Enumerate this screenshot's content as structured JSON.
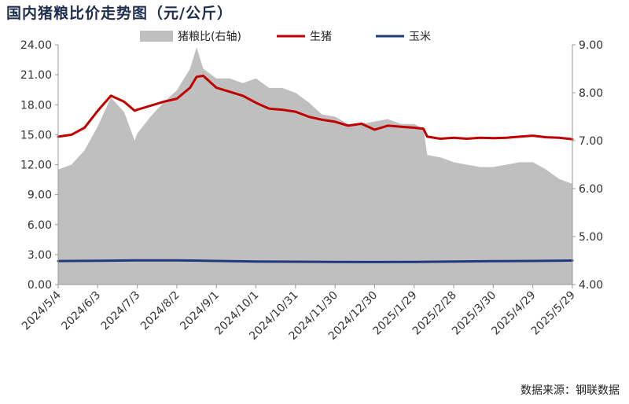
{
  "chart_data": {
    "type": "line",
    "title": "国内猪粮比价走势图（元/公斤）",
    "source": "数据来源：钢联数据",
    "x_ticks": [
      "2024/5/4",
      "2024/6/3",
      "2024/7/3",
      "2024/8/2",
      "2024/9/1",
      "2024/10/1",
      "2024/10/31",
      "2024/11/30",
      "2024/12/30",
      "2025/1/29",
      "2025/2/28",
      "2025/3/30",
      "2025/4/29",
      "2025/5/29"
    ],
    "left_axis": {
      "ylim": [
        0,
        24
      ],
      "ticks": [
        "0.00",
        "3.00",
        "6.00",
        "9.00",
        "12.00",
        "15.00",
        "18.00",
        "21.00",
        "24.00"
      ]
    },
    "right_axis": {
      "ylim": [
        4,
        9
      ],
      "ticks": [
        "4.00",
        "5.00",
        "6.00",
        "7.00",
        "8.00",
        "9.00"
      ]
    },
    "legend": {
      "placement": "top"
    },
    "series": [
      {
        "name": "猪粮比(右轴)",
        "kind": "area",
        "axis": "right",
        "color": "#bfbfbf",
        "x": [
          "2024/5/4",
          "2024/5/14",
          "2024/5/24",
          "2024/6/3",
          "2024/6/13",
          "2024/6/23",
          "2024/7/1",
          "2024/7/3",
          "2024/7/13",
          "2024/7/23",
          "2024/8/2",
          "2024/8/12",
          "2024/8/17",
          "2024/8/22",
          "2024/9/1",
          "2024/9/11",
          "2024/9/21",
          "2024/10/1",
          "2024/10/11",
          "2024/10/21",
          "2024/10/31",
          "2024/11/10",
          "2024/11/20",
          "2024/11/30",
          "2024/12/10",
          "2024/12/20",
          "2024/12/30",
          "2025/1/9",
          "2025/1/19",
          "2025/1/29",
          "2025/2/5",
          "2025/2/8",
          "2025/2/18",
          "2025/2/28",
          "2025/3/10",
          "2025/3/20",
          "2025/3/30",
          "2025/4/9",
          "2025/4/19",
          "2025/4/29",
          "2025/5/9",
          "2025/5/19",
          "2025/5/29"
        ],
        "values": [
          6.4,
          6.5,
          6.8,
          7.3,
          7.9,
          7.6,
          7.0,
          7.15,
          7.5,
          7.8,
          8.05,
          8.5,
          8.95,
          8.5,
          8.3,
          8.3,
          8.2,
          8.3,
          8.1,
          8.1,
          8.0,
          7.8,
          7.55,
          7.5,
          7.35,
          7.35,
          7.4,
          7.45,
          7.35,
          7.35,
          7.25,
          6.7,
          6.65,
          6.55,
          6.5,
          6.45,
          6.45,
          6.5,
          6.55,
          6.55,
          6.4,
          6.2,
          6.1
        ]
      },
      {
        "name": "生猪",
        "kind": "line",
        "axis": "left",
        "color": "#c00000",
        "x": [
          "2024/5/4",
          "2024/5/14",
          "2024/5/24",
          "2024/6/3",
          "2024/6/13",
          "2024/6/23",
          "2024/7/1",
          "2024/7/3",
          "2024/7/13",
          "2024/7/23",
          "2024/8/2",
          "2024/8/12",
          "2024/8/17",
          "2024/8/22",
          "2024/9/1",
          "2024/9/11",
          "2024/9/21",
          "2024/10/1",
          "2024/10/11",
          "2024/10/21",
          "2024/10/31",
          "2024/11/10",
          "2024/11/20",
          "2024/11/30",
          "2024/12/10",
          "2024/12/20",
          "2024/12/30",
          "2025/1/9",
          "2025/1/19",
          "2025/1/29",
          "2025/2/5",
          "2025/2/8",
          "2025/2/18",
          "2025/2/28",
          "2025/3/10",
          "2025/3/20",
          "2025/3/30",
          "2025/4/9",
          "2025/4/19",
          "2025/4/29",
          "2025/5/9",
          "2025/5/19",
          "2025/5/29"
        ],
        "values": [
          14.8,
          15.0,
          15.7,
          17.4,
          18.9,
          18.3,
          17.4,
          17.5,
          17.9,
          18.3,
          18.6,
          19.7,
          20.8,
          20.9,
          19.7,
          19.3,
          18.9,
          18.2,
          17.6,
          17.5,
          17.3,
          16.8,
          16.5,
          16.3,
          15.9,
          16.1,
          15.5,
          15.9,
          15.8,
          15.7,
          15.6,
          14.8,
          14.6,
          14.7,
          14.6,
          14.7,
          14.65,
          14.7,
          14.8,
          14.9,
          14.75,
          14.7,
          14.55
        ]
      },
      {
        "name": "玉米",
        "kind": "line",
        "axis": "left",
        "color": "#1f3a7a",
        "x": [
          "2024/5/4",
          "2024/6/3",
          "2024/7/3",
          "2024/8/2",
          "2024/9/1",
          "2024/10/1",
          "2024/10/31",
          "2024/11/30",
          "2024/12/30",
          "2025/1/29",
          "2025/2/28",
          "2025/3/30",
          "2025/4/29",
          "2025/5/29"
        ],
        "values": [
          2.35,
          2.38,
          2.42,
          2.42,
          2.36,
          2.3,
          2.28,
          2.27,
          2.25,
          2.27,
          2.3,
          2.34,
          2.36,
          2.4
        ]
      }
    ]
  }
}
